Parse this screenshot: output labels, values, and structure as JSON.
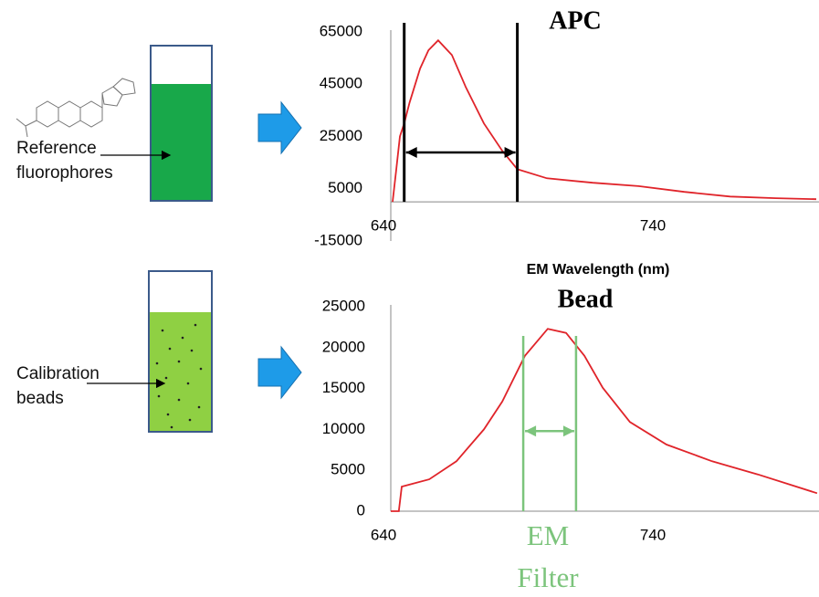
{
  "chart_data": [
    {
      "type": "line",
      "title": "APC",
      "x_label": "EM Wavelength (nm)",
      "xlim": [
        640,
        800
      ],
      "xticks": [
        640,
        740
      ],
      "ylim": [
        -15000,
        65000
      ],
      "yticks": [
        65000,
        45000,
        25000,
        5000,
        -15000
      ],
      "series": [
        {
          "color": "#e0242a",
          "x": [
            641.7,
            643,
            644.4,
            646,
            648,
            651.9,
            655,
            658.6,
            663.7,
            668.8,
            675.6,
            682.4,
            688,
            699,
            716,
            733,
            750,
            767,
            784,
            799
          ],
          "values": [
            0,
            12000,
            25000,
            30000,
            38000,
            51000,
            58000,
            61800,
            56200,
            44000,
            30000,
            19500,
            12500,
            9000,
            7300,
            6000,
            3800,
            2000,
            1400,
            1000
          ]
        }
      ],
      "markers": {
        "x": [
          646,
          688
        ],
        "arrow_y": 18900,
        "color": "#000000"
      }
    },
    {
      "type": "line",
      "title": "Bead",
      "xlim": [
        640,
        800
      ],
      "xticks": [
        640,
        740
      ],
      "ylim": [
        0,
        25000
      ],
      "yticks": [
        25000,
        20000,
        15000,
        10000,
        5000,
        0
      ],
      "series": [
        {
          "color": "#e0242a",
          "x": [
            641,
            644,
            645.1,
            655.3,
            665.4,
            675.6,
            682.4,
            690.8,
            699.3,
            706.1,
            712.9,
            719.7,
            729.8,
            743.4,
            760.3,
            777.3,
            799.3
          ],
          "values": [
            0,
            0,
            3000,
            3900,
            6100,
            10000,
            13400,
            19000,
            22300,
            21800,
            19000,
            15100,
            10900,
            8150,
            6100,
            4500,
            2200
          ]
        }
      ],
      "markers": {
        "x": [
          690.2,
          709.8
        ],
        "arrow_y": 9800,
        "color": "#7cc47c",
        "label": [
          "EM",
          "Filter"
        ]
      }
    }
  ],
  "diagram": {
    "reference_label": [
      "Reference",
      "fluorophores"
    ],
    "beads_label": [
      "Calibration",
      "beads"
    ]
  }
}
